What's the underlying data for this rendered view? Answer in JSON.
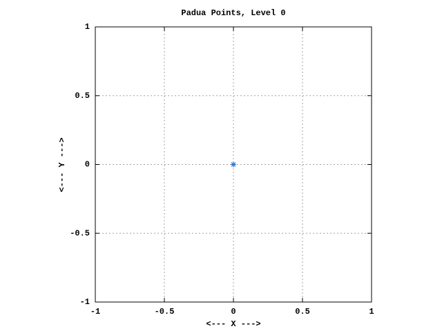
{
  "chart_data": {
    "type": "scatter",
    "title": "Padua Points, Level 0",
    "x_label": "<--- X --->",
    "y_label": "<--- Y --->",
    "x": [
      0
    ],
    "values": [
      0
    ],
    "color": "#1e78d2",
    "xlim": [
      -1,
      1
    ],
    "ylim": [
      -1,
      1
    ],
    "xticks": [
      -1,
      -0.5,
      0,
      0.5,
      1
    ],
    "yticks": [
      -1,
      -0.5,
      0,
      0.5,
      1
    ],
    "grid": true
  }
}
